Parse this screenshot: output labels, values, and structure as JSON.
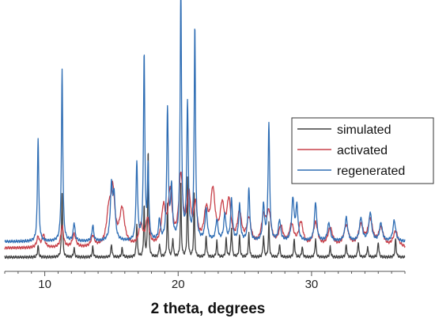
{
  "chart_data": {
    "type": "line",
    "title": "",
    "xlabel": "2 theta, degrees",
    "ylabel": "",
    "xlim": [
      7,
      37
    ],
    "ylim": [
      0,
      100
    ],
    "xticks": [
      10,
      20,
      30
    ],
    "xtick_labels": [
      "10",
      "20",
      "30"
    ],
    "grid": false,
    "legend_position": "right",
    "series": [
      {
        "name": "simulated",
        "color": "#404040",
        "baseline": 1.5,
        "peaks": [
          [
            9.5,
            4.5,
            0.05
          ],
          [
            11.3,
            25,
            0.045
          ],
          [
            12.2,
            3.5,
            0.05
          ],
          [
            13.6,
            4,
            0.05
          ],
          [
            15.0,
            5,
            0.05
          ],
          [
            15.8,
            3.5,
            0.05
          ],
          [
            16.9,
            13,
            0.045
          ],
          [
            17.45,
            20,
            0.04
          ],
          [
            17.75,
            42,
            0.04
          ],
          [
            18.6,
            5,
            0.05
          ],
          [
            19.2,
            20,
            0.045
          ],
          [
            19.6,
            7,
            0.05
          ],
          [
            20.2,
            28,
            0.04
          ],
          [
            20.7,
            30,
            0.04
          ],
          [
            21.2,
            24,
            0.04
          ],
          [
            22.1,
            8,
            0.05
          ],
          [
            22.9,
            6,
            0.05
          ],
          [
            23.6,
            7,
            0.05
          ],
          [
            24.0,
            11,
            0.05
          ],
          [
            24.6,
            8,
            0.05
          ],
          [
            25.3,
            9,
            0.05
          ],
          [
            26.4,
            8,
            0.05
          ],
          [
            26.8,
            13,
            0.045
          ],
          [
            27.6,
            5,
            0.05
          ],
          [
            28.7,
            7,
            0.05
          ],
          [
            29.3,
            4,
            0.05
          ],
          [
            30.3,
            7,
            0.05
          ],
          [
            31.4,
            4,
            0.05
          ],
          [
            32.6,
            5,
            0.05
          ],
          [
            33.5,
            6,
            0.05
          ],
          [
            34.2,
            4,
            0.05
          ],
          [
            35.0,
            6,
            0.05
          ],
          [
            36.3,
            7,
            0.05
          ]
        ]
      },
      {
        "name": "activated",
        "color": "#c8414a",
        "baseline": 5,
        "peaks": [
          [
            9.5,
            4,
            0.12
          ],
          [
            9.9,
            5,
            0.12
          ],
          [
            11.3,
            8,
            0.12
          ],
          [
            12.2,
            5,
            0.15
          ],
          [
            13.6,
            4,
            0.15
          ],
          [
            14.8,
            12,
            0.2
          ],
          [
            15.1,
            20,
            0.18
          ],
          [
            15.8,
            14,
            0.22
          ],
          [
            17.2,
            8,
            0.18
          ],
          [
            17.7,
            10,
            0.15
          ],
          [
            18.9,
            14,
            0.18
          ],
          [
            19.4,
            20,
            0.18
          ],
          [
            20.2,
            26,
            0.18
          ],
          [
            20.8,
            18,
            0.18
          ],
          [
            21.3,
            14,
            0.16
          ],
          [
            22.1,
            12,
            0.2
          ],
          [
            22.6,
            20,
            0.2
          ],
          [
            23.3,
            14,
            0.2
          ],
          [
            23.8,
            16,
            0.18
          ],
          [
            24.6,
            12,
            0.2
          ],
          [
            25.3,
            10,
            0.2
          ],
          [
            26.4,
            10,
            0.2
          ],
          [
            26.8,
            12,
            0.2
          ],
          [
            27.7,
            7,
            0.2
          ],
          [
            28.5,
            8,
            0.2
          ],
          [
            29.2,
            9,
            0.2
          ],
          [
            30.3,
            9,
            0.2
          ],
          [
            31.4,
            7,
            0.22
          ],
          [
            32.6,
            8,
            0.22
          ],
          [
            33.7,
            8,
            0.22
          ],
          [
            34.4,
            10,
            0.22
          ],
          [
            35.2,
            7,
            0.22
          ],
          [
            36.3,
            6,
            0.22
          ]
        ]
      },
      {
        "name": "regenerated",
        "color": "#2e6db4",
        "baseline": 7.5,
        "peaks": [
          [
            9.5,
            40,
            0.06
          ],
          [
            11.3,
            66,
            0.06
          ],
          [
            12.2,
            7,
            0.08
          ],
          [
            13.6,
            6,
            0.08
          ],
          [
            15.0,
            20,
            0.1
          ],
          [
            15.2,
            16,
            0.1
          ],
          [
            16.9,
            30,
            0.07
          ],
          [
            17.45,
            72,
            0.06
          ],
          [
            17.75,
            28,
            0.06
          ],
          [
            18.6,
            8,
            0.08
          ],
          [
            19.2,
            50,
            0.07
          ],
          [
            19.5,
            20,
            0.08
          ],
          [
            20.2,
            98,
            0.06
          ],
          [
            20.7,
            52,
            0.07
          ],
          [
            21.25,
            82,
            0.06
          ],
          [
            22.1,
            12,
            0.1
          ],
          [
            22.9,
            8,
            0.1
          ],
          [
            23.5,
            10,
            0.1
          ],
          [
            24.0,
            16,
            0.08
          ],
          [
            24.6,
            14,
            0.08
          ],
          [
            25.3,
            20,
            0.08
          ],
          [
            26.4,
            14,
            0.08
          ],
          [
            26.8,
            45,
            0.07
          ],
          [
            27.6,
            8,
            0.1
          ],
          [
            28.6,
            16,
            0.1
          ],
          [
            28.9,
            13,
            0.1
          ],
          [
            30.3,
            15,
            0.1
          ],
          [
            31.3,
            7,
            0.12
          ],
          [
            32.6,
            9,
            0.12
          ],
          [
            33.7,
            9,
            0.12
          ],
          [
            34.4,
            11,
            0.12
          ],
          [
            35.2,
            7,
            0.12
          ],
          [
            36.2,
            8,
            0.12
          ]
        ]
      }
    ]
  }
}
